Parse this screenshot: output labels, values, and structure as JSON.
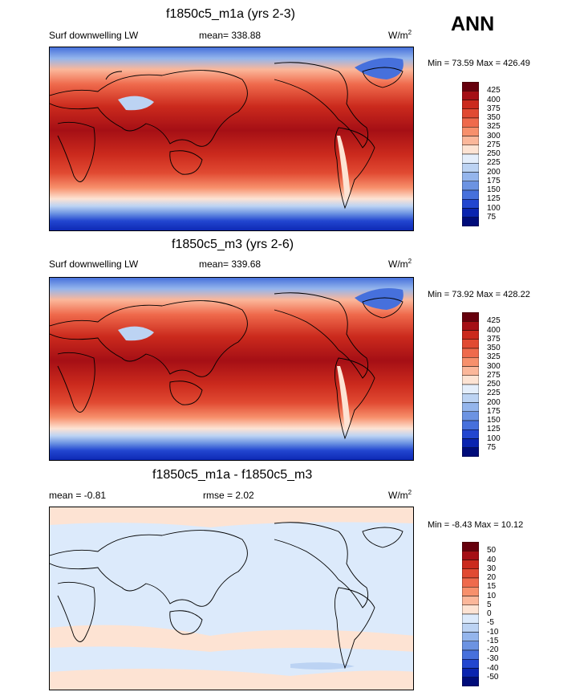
{
  "season": "ANN",
  "panels": [
    {
      "title": "f1850c5_m1a (yrs 2-3)",
      "variable": "Surf downwelling LW",
      "stat_label": "mean=",
      "stat_value": "338.88",
      "units": "W/m",
      "units_exp": "2",
      "range": "Min =  73.59 Max = 426.49",
      "levels": [
        "425",
        "400",
        "375",
        "350",
        "325",
        "300",
        "275",
        "250",
        "225",
        "200",
        "175",
        "150",
        "125",
        "100",
        "75"
      ]
    },
    {
      "title": "f1850c5_m3 (yrs 2-6)",
      "variable": "Surf downwelling LW",
      "stat_label": "mean=",
      "stat_value": "339.68",
      "units": "W/m",
      "units_exp": "2",
      "range": "Min =  73.92 Max = 428.22",
      "levels": [
        "425",
        "400",
        "375",
        "350",
        "325",
        "300",
        "275",
        "250",
        "225",
        "200",
        "175",
        "150",
        "125",
        "100",
        "75"
      ]
    },
    {
      "title": "f1850c5_m1a - f1850c5_m3",
      "stat1_label": "mean =",
      "stat1_value": "-0.81",
      "stat2_label": "rmse =",
      "stat2_value": "2.02",
      "units": "W/m",
      "units_exp": "2",
      "range": "Min =  -8.43 Max =  10.12",
      "levels": [
        "50",
        "40",
        "30",
        "20",
        "15",
        "10",
        "5",
        "0",
        "-5",
        "-10",
        "-15",
        "-20",
        "-30",
        "-40",
        "-50"
      ]
    }
  ],
  "colors": {
    "field_scale": [
      "#67000d",
      "#a50f15",
      "#cb2a1d",
      "#e14a32",
      "#ef6a4c",
      "#f7906c",
      "#fbb79a",
      "#fde3d3",
      "#e4eefb",
      "#bcd3f3",
      "#94b5ec",
      "#6c93e2",
      "#4670dc",
      "#2246d0",
      "#0a24b0",
      "#000c7a"
    ],
    "diff_scale": [
      "#67000d",
      "#a50f15",
      "#cb2a1d",
      "#e14a32",
      "#ef6a4c",
      "#f7906c",
      "#fbb79a",
      "#fde3d3",
      "#dceafb",
      "#bcd3f3",
      "#94b5ec",
      "#6c93e2",
      "#4670dc",
      "#2246d0",
      "#0a24b0",
      "#000c7a"
    ],
    "land_outline": "#000000"
  },
  "chart_data": [
    {
      "type": "heatmap",
      "title": "f1850c5_m1a (yrs 2-3)",
      "subtitle_left": "Surf downwelling LW",
      "mean": 338.88,
      "units": "W/m2",
      "min": 73.59,
      "max": 426.49,
      "contour_levels": [
        75,
        100,
        125,
        150,
        175,
        200,
        225,
        250,
        275,
        300,
        325,
        350,
        375,
        400,
        425
      ],
      "projection": "cylindrical equidistant, Pacific-centered"
    },
    {
      "type": "heatmap",
      "title": "f1850c5_m3 (yrs 2-6)",
      "subtitle_left": "Surf downwelling LW",
      "mean": 339.68,
      "units": "W/m2",
      "min": 73.92,
      "max": 428.22,
      "contour_levels": [
        75,
        100,
        125,
        150,
        175,
        200,
        225,
        250,
        275,
        300,
        325,
        350,
        375,
        400,
        425
      ],
      "projection": "cylindrical equidistant, Pacific-centered"
    },
    {
      "type": "heatmap",
      "title": "f1850c5_m1a - f1850c5_m3",
      "mean": -0.81,
      "rmse": 2.02,
      "units": "W/m2",
      "min": -8.43,
      "max": 10.12,
      "contour_levels": [
        -50,
        -40,
        -30,
        -20,
        -15,
        -10,
        -5,
        0,
        5,
        10,
        15,
        20,
        30,
        40,
        50
      ],
      "projection": "cylindrical equidistant, Pacific-centered"
    }
  ]
}
